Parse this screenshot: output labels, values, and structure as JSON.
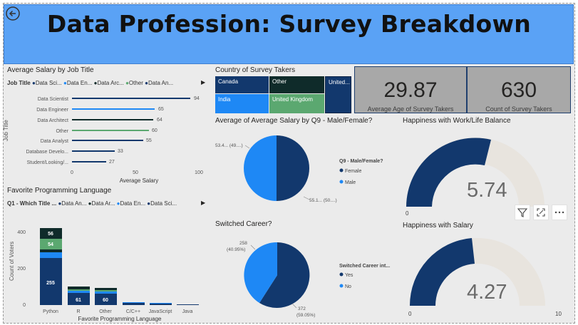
{
  "page": {
    "title": "Data Profession: Survey Breakdown"
  },
  "icons": {
    "back": "back-arrow-icon",
    "filter": "filter-icon",
    "focus": "focus-mode-icon",
    "more": "more-options-icon"
  },
  "colors": {
    "navy": "#12386d",
    "blue": "#1e88f5",
    "green": "#5ba870",
    "dark": "#0f2b2a",
    "gauge_bg": "#e8e4de"
  },
  "salary_by_title": {
    "title": "Average Salary by Job Title",
    "legend_label": "Job Title",
    "legend": [
      "Data Sci...",
      "Data En...",
      "Data Arc...",
      "Other",
      "Data An..."
    ],
    "yaxis": "Job Title",
    "xaxis": "Average Salary",
    "ticks": [
      "0",
      "50",
      "100"
    ],
    "rows": [
      {
        "name": "Data Scientist",
        "value": "94"
      },
      {
        "name": "Data Engineer",
        "value": "65"
      },
      {
        "name": "Data Architect",
        "value": "64"
      },
      {
        "name": "Other",
        "value": "60"
      },
      {
        "name": "Data Analyst",
        "value": "55"
      },
      {
        "name": "Database Develo...",
        "value": "33"
      },
      {
        "name": "Student/Looking/...",
        "value": "27"
      }
    ]
  },
  "country": {
    "title": "Country of Survey Takers",
    "tiles": [
      "Canada",
      "Other",
      "United...",
      "India",
      "United Kingdom"
    ]
  },
  "kpis": [
    {
      "value": "29.87",
      "label": "Average Age of Survey Takers"
    },
    {
      "value": "630",
      "label": "Count of Survey Takers"
    }
  ],
  "gender": {
    "title": "Average of Average Salary by Q9 - Male/Female?",
    "left_label": "53.4... (49....)",
    "right_label": "55.1... (50....)",
    "legend_title": "Q9 - Male/Female?",
    "legend": [
      "Female",
      "Male"
    ]
  },
  "career": {
    "title": "Switched Career?",
    "label_a1": "258",
    "label_a2": "(40.95%)",
    "label_b1": "372",
    "label_b2": "(59.05%)",
    "legend_title": "Switched Career int...",
    "legend": [
      "Yes",
      "No"
    ]
  },
  "happy_wlb": {
    "title": "Happiness with Work/Life Balance",
    "value": "5.74",
    "min": "0"
  },
  "happy_salary": {
    "title": "Happiness with Salary",
    "value": "4.27",
    "min": "0",
    "max": "10"
  },
  "languages": {
    "title": "Favorite Programming Language",
    "legend_label": "Q1 - Which Title ...",
    "legend": [
      "Data An...",
      "Data Ar...",
      "Data En...",
      "Data Sci..."
    ],
    "yaxis": "Count of Voters",
    "xaxis": "Favorite Programming Language",
    "yticks": [
      "400",
      "200",
      "0"
    ],
    "categories": [
      "Python",
      "R",
      "Other",
      "C/C++",
      "JavaScript",
      "Java"
    ],
    "python_labels": [
      "56",
      "54",
      "255"
    ],
    "r_label": "61",
    "other_label": "60"
  },
  "chart_data": [
    {
      "type": "bar",
      "title": "Average Salary by Job Title",
      "xlabel": "Average Salary",
      "ylabel": "Job Title",
      "categories": [
        "Data Scientist",
        "Data Engineer",
        "Data Architect",
        "Other",
        "Data Analyst",
        "Database Develo...",
        "Student/Looking/..."
      ],
      "values": [
        94,
        65,
        64,
        60,
        55,
        33,
        27
      ],
      "xlim": [
        0,
        100
      ]
    },
    {
      "type": "bar",
      "title": "Favorite Programming Language",
      "xlabel": "Favorite Programming Language",
      "ylabel": "Count of Voters",
      "categories": [
        "Python",
        "R",
        "Other",
        "C/C++",
        "JavaScript",
        "Java"
      ],
      "series": [
        {
          "name": "Data An...",
          "values": [
            255,
            61,
            60,
            10,
            8,
            4
          ]
        },
        {
          "name": "Data Ar...",
          "values": [
            5,
            4,
            4,
            1,
            1,
            0
          ]
        },
        {
          "name": "Data En...",
          "values": [
            20,
            8,
            8,
            2,
            1,
            1
          ]
        },
        {
          "name": "Data Sci...",
          "values": [
            54,
            6,
            6,
            1,
            1,
            1
          ]
        },
        {
          "name": "",
          "values": [
            56,
            12,
            12,
            1,
            1,
            1
          ]
        }
      ],
      "ylim": [
        0,
        420
      ]
    },
    {
      "type": "pie",
      "title": "Average of Average Salary by Q9 - Male/Female?",
      "categories": [
        "Female",
        "Male"
      ],
      "values": [
        55.1,
        53.4
      ]
    },
    {
      "type": "pie",
      "title": "Switched Career?",
      "categories": [
        "Yes",
        "No"
      ],
      "values": [
        372,
        258
      ]
    }
  ]
}
